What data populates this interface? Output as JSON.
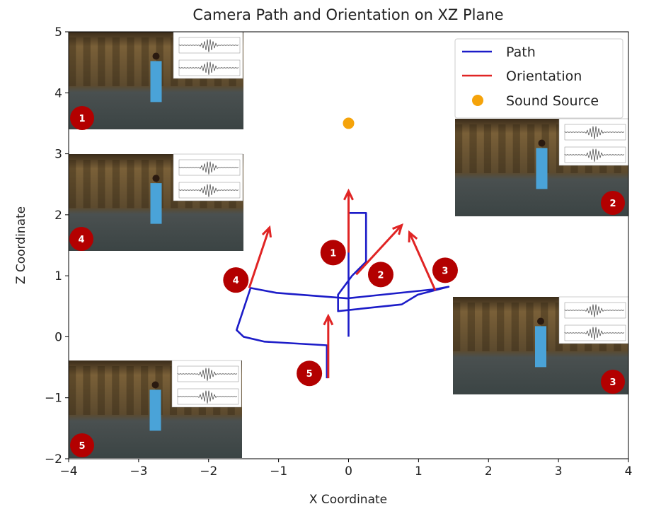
{
  "chart_data": {
    "type": "line",
    "title": "Camera Path and Orientation on XZ Plane",
    "xlabel": "X Coordinate",
    "ylabel": "Z Coordinate",
    "xlim": [
      -4,
      4
    ],
    "ylim": [
      -2,
      5
    ],
    "xticks": [
      "−4",
      "−3",
      "−2",
      "−1",
      "0",
      "1",
      "2",
      "3",
      "4"
    ],
    "yticks": [
      "−2",
      "−1",
      "0",
      "1",
      "2",
      "3",
      "4",
      "5"
    ],
    "grid": false,
    "legend": {
      "placement": "top-right",
      "entries": [
        "Path",
        "Orientation",
        "Sound Source"
      ]
    },
    "colors": {
      "path": "#1c1cc8",
      "orientation": "#e02424",
      "sound_source": "#f5a30a",
      "badge": "#b30000"
    },
    "series": [
      {
        "name": "Path",
        "points": [
          [
            0,
            0
          ],
          [
            0,
            2.03
          ],
          [
            0.25,
            2.03
          ],
          [
            0.25,
            1.23
          ],
          [
            0.05,
            1.0
          ],
          [
            -0.15,
            0.69
          ],
          [
            -0.15,
            0.42
          ],
          [
            0.76,
            0.53
          ],
          [
            0.99,
            0.69
          ],
          [
            1.43,
            0.82
          ],
          [
            1.24,
            0.78
          ],
          [
            -0.02,
            0.63
          ],
          [
            -1.03,
            0.72
          ],
          [
            -1.4,
            0.8
          ],
          [
            -1.6,
            0.11
          ],
          [
            -1.5,
            0.0
          ],
          [
            -1.2,
            -0.08
          ],
          [
            -0.31,
            -0.14
          ],
          [
            -0.31,
            -0.68
          ]
        ]
      },
      {
        "name": "Orientation",
        "arrows": [
          {
            "label": "1",
            "from": [
              0,
              1.38
            ],
            "to": [
              0,
              2.39
            ]
          },
          {
            "label": "2",
            "from": [
              0.11,
              1.02
            ],
            "to": [
              0.76,
              1.83
            ]
          },
          {
            "label": "3",
            "from": [
              1.24,
              0.76
            ],
            "to": [
              0.87,
              1.71
            ]
          },
          {
            "label": "4",
            "from": [
              -1.42,
              0.8
            ],
            "to": [
              -1.13,
              1.79
            ]
          },
          {
            "label": "5",
            "from": [
              -0.29,
              -0.68
            ],
            "to": [
              -0.29,
              0.34
            ]
          }
        ]
      },
      {
        "name": "Sound Source",
        "points": [
          [
            0,
            3.5
          ]
        ]
      }
    ],
    "annotations": [
      {
        "label": "1",
        "at": [
          -0.22,
          1.38
        ]
      },
      {
        "label": "2",
        "at": [
          0.46,
          1.02
        ]
      },
      {
        "label": "3",
        "at": [
          1.38,
          1.09
        ]
      },
      {
        "label": "4",
        "at": [
          -1.61,
          0.93
        ]
      },
      {
        "label": "5",
        "at": [
          -0.56,
          -0.6
        ]
      }
    ],
    "insets": [
      {
        "label": "1"
      },
      {
        "label": "2"
      },
      {
        "label": "4"
      },
      {
        "label": "3"
      },
      {
        "label": "5"
      }
    ]
  }
}
